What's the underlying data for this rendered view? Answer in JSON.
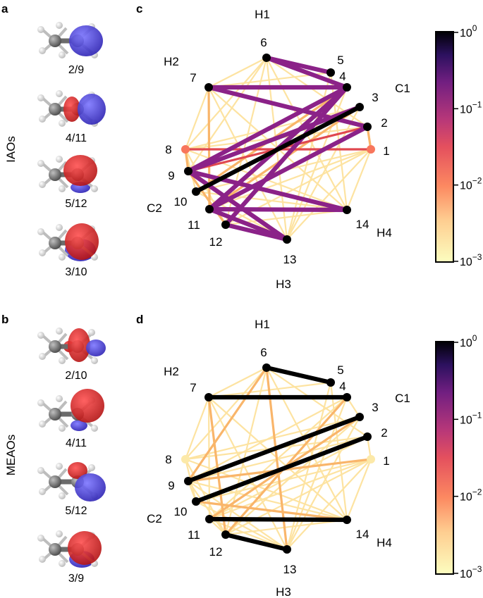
{
  "panels": {
    "a": "a",
    "b": "b",
    "c": "c",
    "d": "d",
    "a_label": "IAOs",
    "b_label": "MEAOs"
  },
  "orbitals_a": [
    "2/9",
    "4/11",
    "5/12",
    "3/10"
  ],
  "orbitals_b": [
    "2/10",
    "4/11",
    "5/12",
    "3/9"
  ],
  "atom_groups": {
    "H1": "H1",
    "H2": "H2",
    "C1": "C1",
    "C2": "C2",
    "H3": "H3",
    "H4": "H4"
  },
  "nodes": [
    "1",
    "2",
    "3",
    "4",
    "5",
    "6",
    "7",
    "8",
    "9",
    "10",
    "11",
    "12",
    "13",
    "14"
  ],
  "colorbar": {
    "ticks": [
      {
        "base": "10",
        "exp": "0"
      },
      {
        "base": "10",
        "exp": "−1"
      },
      {
        "base": "10",
        "exp": "−2"
      },
      {
        "base": "10",
        "exp": "−3"
      }
    ],
    "colors": [
      "#fcfdbf",
      "#fc8961",
      "#b73779",
      "#51127c",
      "#000004"
    ],
    "scale": "log",
    "range": [
      0.001,
      1
    ]
  },
  "chart_data": [
    {
      "type": "network",
      "panel": "c",
      "node_colors": {
        "1": "#f8765c",
        "8": "#f8765c"
      },
      "edges_strong": [
        [
          10,
          3
        ]
      ],
      "edges_mid": [
        [
          6,
          5
        ],
        [
          7,
          4
        ],
        [
          7,
          2
        ],
        [
          9,
          4
        ],
        [
          9,
          3
        ],
        [
          9,
          14
        ],
        [
          11,
          4
        ],
        [
          11,
          2
        ],
        [
          11,
          14
        ],
        [
          12,
          4
        ],
        [
          12,
          13
        ],
        [
          9,
          13
        ],
        [
          11,
          13
        ],
        [
          6,
          4
        ]
      ],
      "edges_red": [
        [
          9,
          2
        ],
        [
          8,
          1
        ]
      ],
      "edges_orange": [
        [
          8,
          9
        ],
        [
          7,
          11
        ],
        [
          1,
          2
        ],
        [
          11,
          13
        ],
        [
          12,
          9
        ],
        [
          3,
          11
        ],
        [
          4,
          10
        ]
      ],
      "edges_faint": [
        [
          6,
          7
        ],
        [
          6,
          8
        ],
        [
          6,
          9
        ],
        [
          6,
          12
        ],
        [
          6,
          14
        ],
        [
          6,
          2
        ],
        [
          7,
          8
        ],
        [
          7,
          14
        ],
        [
          7,
          13
        ],
        [
          8,
          2
        ],
        [
          8,
          3
        ],
        [
          8,
          14
        ],
        [
          8,
          12
        ],
        [
          8,
          10
        ],
        [
          9,
          12
        ],
        [
          10,
          14
        ],
        [
          10,
          1
        ],
        [
          11,
          1
        ],
        [
          12,
          1
        ],
        [
          12,
          14
        ],
        [
          13,
          1
        ],
        [
          13,
          3
        ],
        [
          13,
          6
        ],
        [
          14,
          5
        ],
        [
          1,
          14
        ],
        [
          5,
          7
        ],
        [
          5,
          13
        ],
        [
          10,
          13
        ],
        [
          4,
          13
        ]
      ]
    },
    {
      "type": "network",
      "panel": "d",
      "node_colors": {
        "1": "#fce9a8",
        "8": "#fce9a8"
      },
      "edges_strong": [
        [
          6,
          5
        ],
        [
          7,
          4
        ],
        [
          9,
          3
        ],
        [
          10,
          2
        ],
        [
          11,
          14
        ],
        [
          12,
          13
        ]
      ],
      "edges_mid": [],
      "edges_red": [],
      "edges_orange": [
        [
          6,
          9
        ],
        [
          12,
          4
        ],
        [
          11,
          3
        ],
        [
          7,
          12
        ],
        [
          13,
          6
        ],
        [
          9,
          1
        ],
        [
          10,
          14
        ]
      ],
      "edges_faint": [
        [
          6,
          7
        ],
        [
          6,
          8
        ],
        [
          6,
          12
        ],
        [
          6,
          14
        ],
        [
          6,
          2
        ],
        [
          7,
          8
        ],
        [
          7,
          14
        ],
        [
          7,
          13
        ],
        [
          7,
          11
        ],
        [
          8,
          2
        ],
        [
          8,
          3
        ],
        [
          8,
          14
        ],
        [
          8,
          12
        ],
        [
          8,
          10
        ],
        [
          9,
          12
        ],
        [
          9,
          14
        ],
        [
          9,
          13
        ],
        [
          9,
          4
        ],
        [
          10,
          1
        ],
        [
          10,
          13
        ],
        [
          11,
          1
        ],
        [
          11,
          2
        ],
        [
          11,
          4
        ],
        [
          11,
          13
        ],
        [
          12,
          1
        ],
        [
          12,
          14
        ],
        [
          13,
          1
        ],
        [
          13,
          3
        ],
        [
          14,
          5
        ],
        [
          1,
          14
        ],
        [
          5,
          7
        ],
        [
          5,
          13
        ],
        [
          4,
          13
        ],
        [
          2,
          9
        ],
        [
          3,
          12
        ],
        [
          1,
          2
        ],
        [
          3,
          4
        ],
        [
          11,
          12
        ],
        [
          9,
          10
        ]
      ]
    }
  ]
}
